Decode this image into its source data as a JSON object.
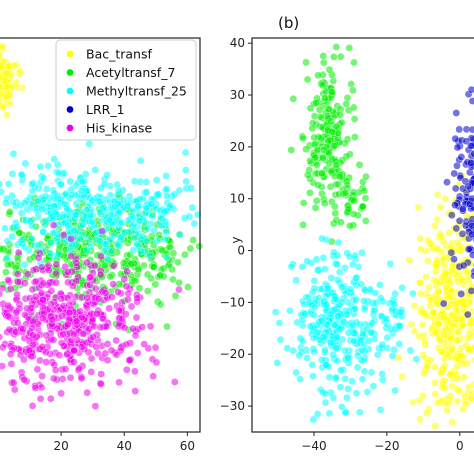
{
  "chart_data": [
    {
      "type": "scatter",
      "panel": "left",
      "title": "",
      "xlabel": "",
      "ylabel": "",
      "xlim": [
        0,
        64
      ],
      "ylim": [
        -28,
        40
      ],
      "xticks": [
        20,
        40,
        60
      ],
      "yticks": [],
      "legend": {
        "position": "top-right"
      },
      "series": [
        {
          "name": "Bac_transf",
          "color": "#ffff00",
          "clusters": [
            {
              "cx": 2,
              "cy": 33,
              "sx": 2,
              "sy": 2.5,
              "n": 90
            }
          ]
        },
        {
          "name": "Acetyltransf_7",
          "color": "#00ee00",
          "clusters": [
            {
              "cx": 30,
              "cy": 3,
              "sx": 16,
              "sy": 4,
              "n": 420
            }
          ]
        },
        {
          "name": "Methyltransf_25",
          "color": "#00ffff",
          "clusters": [
            {
              "cx": 28,
              "cy": 10,
              "sx": 17,
              "sy": 4,
              "n": 420
            }
          ]
        },
        {
          "name": "LRR_1",
          "color": "#0000cc",
          "clusters": []
        },
        {
          "name": "His_kinase",
          "color": "#ee00ee",
          "clusters": [
            {
              "cx": 20,
              "cy": -9,
              "sx": 14,
              "sy": 5,
              "n": 520
            }
          ]
        }
      ]
    },
    {
      "type": "scatter",
      "panel": "right",
      "panel_label": "(b)",
      "title": "",
      "xlabel": "",
      "ylabel": "y",
      "xlim": [
        -57,
        5
      ],
      "ylim": [
        -35,
        41
      ],
      "xticks": [
        -40,
        -20,
        0
      ],
      "yticks": [
        -30,
        -20,
        -10,
        0,
        10,
        20,
        30,
        40
      ],
      "series": [
        {
          "name": "Bac_transf",
          "color": "#ffff00",
          "clusters": [
            {
              "cx": -2,
              "cy": -12,
              "sx": 5,
              "sy": 9,
              "n": 420
            }
          ]
        },
        {
          "name": "Acetyltransf_7",
          "color": "#00ee00",
          "clusters": [
            {
              "cx": -36,
              "cy": 22,
              "sx": 3.5,
              "sy": 7,
              "n": 200
            },
            {
              "cx": -30,
              "cy": 10,
              "sx": 2,
              "sy": 3,
              "n": 40
            }
          ]
        },
        {
          "name": "Methyltransf_25",
          "color": "#00ffff",
          "clusters": [
            {
              "cx": -33,
              "cy": -14,
              "sx": 7,
              "sy": 7,
              "n": 330
            },
            {
              "cx": -18,
              "cy": -12,
              "sx": 2,
              "sy": 3,
              "n": 30
            }
          ]
        },
        {
          "name": "LRR_1",
          "color": "#0000cc",
          "clusters": [
            {
              "cx": 4,
              "cy": 10,
              "sx": 3,
              "sy": 9,
              "n": 170
            }
          ]
        },
        {
          "name": "His_kinase",
          "color": "#ee00ee",
          "clusters": []
        }
      ]
    }
  ]
}
